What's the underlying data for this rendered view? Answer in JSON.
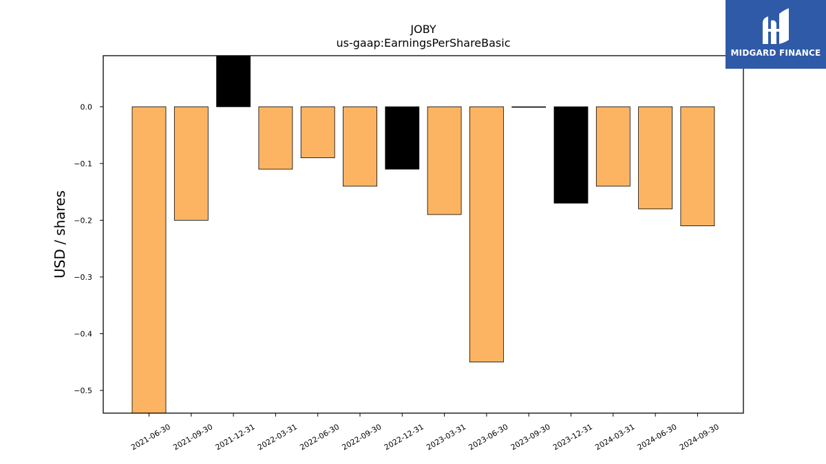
{
  "chart_data": {
    "type": "bar",
    "title": "JOBY",
    "subtitle": "us-gaap:EarningsPerShareBasic",
    "xlabel": "",
    "ylabel": "USD / shares",
    "categories": [
      "2021-06-30",
      "2021-09-30",
      "2021-12-31",
      "2022-03-31",
      "2022-06-30",
      "2022-09-30",
      "2022-12-31",
      "2023-03-31",
      "2023-06-30",
      "2023-09-30",
      "2023-12-31",
      "2024-03-31",
      "2024-06-30",
      "2024-09-30"
    ],
    "values": [
      -0.54,
      -0.2,
      0.09,
      -0.11,
      -0.09,
      -0.14,
      -0.11,
      -0.19,
      -0.45,
      0.0,
      -0.17,
      -0.14,
      -0.18,
      -0.21
    ],
    "bar_colors": [
      "#fdb462",
      "#fdb462",
      "#000000",
      "#fdb462",
      "#fdb462",
      "#fdb462",
      "#000000",
      "#fdb462",
      "#fdb462",
      "#000000",
      "#000000",
      "#fdb462",
      "#fdb462",
      "#fdb462"
    ],
    "ylim": [
      -0.54,
      0.09
    ],
    "yticks": [
      0.0,
      -0.1,
      -0.2,
      -0.3,
      -0.4,
      -0.5
    ],
    "ytick_labels": [
      "0.0",
      "−0.1",
      "−0.2",
      "−0.3",
      "−0.4",
      "−0.5"
    ],
    "grid": false,
    "legend": "none"
  },
  "logo": {
    "text": "MIDGARD FINANCE",
    "background": "#2f5aa8",
    "icon": "midgard-finance-logo-icon"
  }
}
